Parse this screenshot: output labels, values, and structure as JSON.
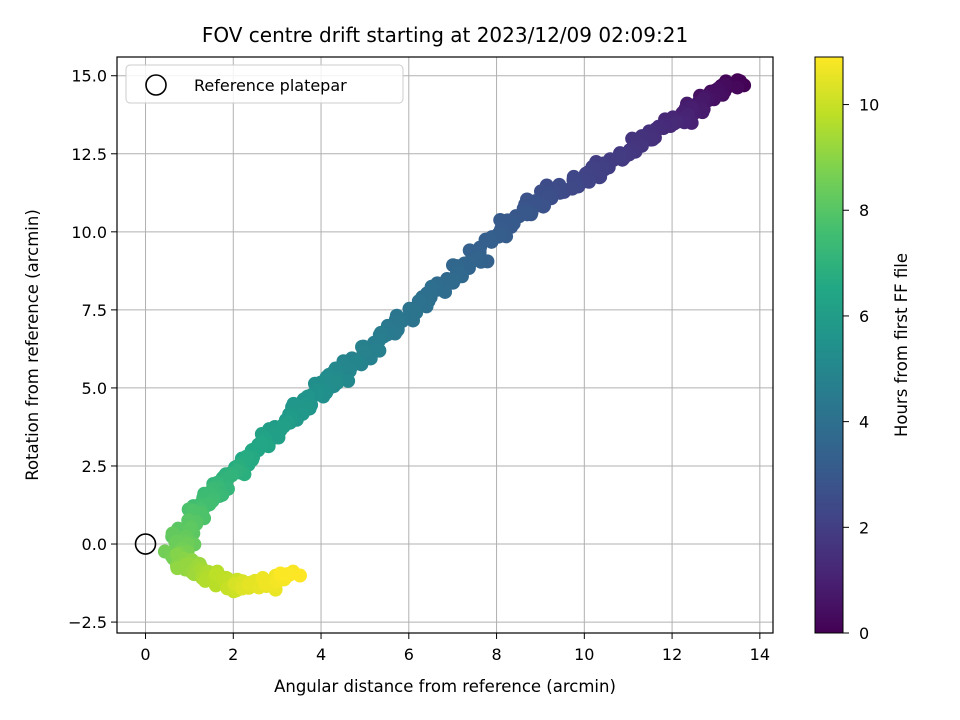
{
  "chart_data": {
    "type": "scatter",
    "title": "FOV centre drift starting at 2023/12/09 02:09:21",
    "xlabel": "Angular distance from reference (arcmin)",
    "ylabel": "Rotation from reference (arcmin)",
    "xlim": [
      -0.65,
      14.3
    ],
    "ylim": [
      -2.85,
      15.6
    ],
    "xticks": [
      0,
      2,
      4,
      6,
      8,
      10,
      12,
      14
    ],
    "yticks": [
      -2.5,
      0.0,
      2.5,
      5.0,
      7.5,
      10.0,
      12.5,
      15.0
    ],
    "xtick_labels": [
      "0",
      "2",
      "4",
      "6",
      "8",
      "10",
      "12",
      "14"
    ],
    "ytick_labels": [
      "−2.5",
      "0.0",
      "2.5",
      "5.0",
      "7.5",
      "10.0",
      "12.5",
      "15.0"
    ],
    "grid": true,
    "legend": {
      "placement": "top-left",
      "entries": [
        "Reference platepar"
      ]
    },
    "reference_point": {
      "x": 0,
      "y": 0,
      "label": "Reference platepar"
    },
    "colorbar": {
      "label": "Hours from first FF file",
      "range": [
        0,
        10.9
      ],
      "ticks": [
        0,
        2,
        4,
        6,
        8,
        10
      ],
      "tick_labels": [
        "0",
        "2",
        "4",
        "6",
        "8",
        "10"
      ],
      "colormap": "viridis"
    },
    "series_anchors": [
      {
        "hours": 0.0,
        "x": 13.4,
        "y": 14.8
      },
      {
        "hours": 0.5,
        "x": 12.9,
        "y": 14.3
      },
      {
        "hours": 1.0,
        "x": 12.3,
        "y": 13.7
      },
      {
        "hours": 1.5,
        "x": 11.5,
        "y": 13.1
      },
      {
        "hours": 2.0,
        "x": 10.4,
        "y": 12.0
      },
      {
        "hours": 2.5,
        "x": 9.3,
        "y": 11.3
      },
      {
        "hours": 3.0,
        "x": 8.4,
        "y": 10.4
      },
      {
        "hours": 3.5,
        "x": 7.4,
        "y": 9.0
      },
      {
        "hours": 4.0,
        "x": 6.3,
        "y": 7.8
      },
      {
        "hours": 4.5,
        "x": 5.4,
        "y": 6.6
      },
      {
        "hours": 5.0,
        "x": 4.6,
        "y": 5.6
      },
      {
        "hours": 5.5,
        "x": 3.8,
        "y": 4.7
      },
      {
        "hours": 6.0,
        "x": 3.1,
        "y": 3.7
      },
      {
        "hours": 6.5,
        "x": 2.4,
        "y": 2.9
      },
      {
        "hours": 7.0,
        "x": 1.9,
        "y": 2.1
      },
      {
        "hours": 7.5,
        "x": 1.4,
        "y": 1.3
      },
      {
        "hours": 8.0,
        "x": 1.0,
        "y": 0.6
      },
      {
        "hours": 8.5,
        "x": 0.7,
        "y": -0.2
      },
      {
        "hours": 9.0,
        "x": 0.9,
        "y": -0.7
      },
      {
        "hours": 9.5,
        "x": 1.4,
        "y": -1.0
      },
      {
        "hours": 10.0,
        "x": 2.0,
        "y": -1.3
      },
      {
        "hours": 10.5,
        "x": 2.6,
        "y": -1.3
      },
      {
        "hours": 10.9,
        "x": 3.3,
        "y": -1.0
      }
    ]
  }
}
